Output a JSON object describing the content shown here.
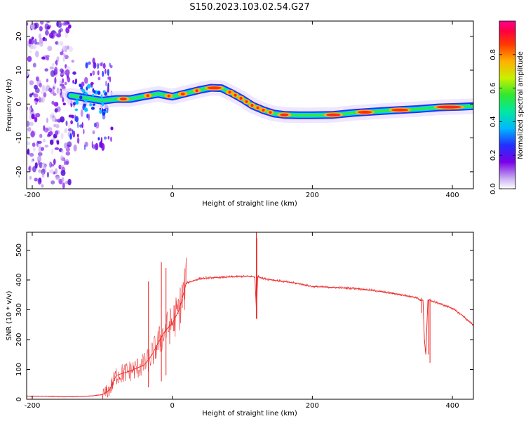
{
  "title": "S150.2023.103.02.54.G27",
  "chart_data": [
    {
      "type": "heatmap",
      "name": "spectrogram",
      "xlabel": "Height of straight line (km)",
      "ylabel": "Frequency (Hz)",
      "xlim": [
        -208,
        430
      ],
      "ylim": [
        -25,
        24.5
      ],
      "xticks": [
        "-200",
        "0",
        "200",
        "400"
      ],
      "xtick_values": [
        -200,
        0,
        200,
        400
      ],
      "yticks": [
        "-20",
        "-10",
        "0",
        "10",
        "20"
      ],
      "ytick_values": [
        -20,
        -10,
        0,
        10,
        20
      ],
      "noise_region_km": [
        -208,
        -145
      ],
      "ridge": {
        "x": [
          -145,
          -130,
          -115,
          -100,
          -80,
          -60,
          -40,
          -20,
          0,
          20,
          40,
          55,
          70,
          85,
          100,
          115,
          130,
          145,
          160,
          180,
          200,
          230,
          260,
          290,
          320,
          350,
          380,
          410,
          430
        ],
        "y": [
          2.5,
          2,
          1.5,
          1,
          1.5,
          1.5,
          2.3,
          3,
          2.2,
          3.2,
          4.2,
          4.8,
          4.7,
          3.2,
          1.5,
          -0.5,
          -1.8,
          -2.8,
          -3.2,
          -3.3,
          -3.3,
          -3.2,
          -2.6,
          -2.2,
          -1.8,
          -1.5,
          -1,
          -0.8,
          -0.6
        ]
      },
      "colorbar": {
        "label": "Normalized spectral amplitude",
        "ticks": [
          "0.0",
          "0.2",
          "0.4",
          "0.6",
          "0.8"
        ],
        "tick_values": [
          0,
          0.2,
          0.4,
          0.6,
          0.8
        ],
        "range": [
          0,
          1
        ]
      }
    },
    {
      "type": "line",
      "name": "snr",
      "xlabel": "Height of straight line (km)",
      "ylabel": "SNR (10 * v/v)",
      "xlim": [
        -208,
        430
      ],
      "ylim": [
        0,
        560
      ],
      "xticks": [
        "-200",
        "0",
        "200",
        "400"
      ],
      "xtick_values": [
        -200,
        0,
        200,
        400
      ],
      "yticks": [
        "0",
        "100",
        "200",
        "300",
        "400",
        "500"
      ],
      "ytick_values": [
        0,
        100,
        200,
        300,
        400,
        500
      ],
      "color": "#ee2222",
      "series": [
        {
          "name": "SNR",
          "x": [
            -208,
            -180,
            -150,
            -120,
            -100,
            -90,
            -80,
            -60,
            -40,
            -30,
            -20,
            -10,
            0,
            10,
            20,
            40,
            60,
            80,
            100,
            110,
            118,
            120,
            122,
            130,
            150,
            180,
            200,
            230,
            260,
            290,
            320,
            340,
            350,
            355,
            358,
            360,
            362,
            365,
            368,
            370,
            372,
            380,
            400,
            415,
            425,
            430
          ],
          "y": [
            10,
            10,
            8,
            10,
            15,
            30,
            80,
            95,
            115,
            145,
            190,
            230,
            255,
            300,
            390,
            405,
            408,
            410,
            412,
            412,
            410,
            300,
            412,
            405,
            398,
            388,
            378,
            375,
            372,
            364,
            353,
            345,
            340,
            330,
            333,
            200,
            150,
            333,
            333,
            330,
            328,
            322,
            305,
            280,
            258,
            248
          ]
        }
      ],
      "spikes": [
        {
          "x": 120,
          "from": 270,
          "to": 560
        },
        {
          "x": 120.6,
          "from": 270,
          "to": 540
        },
        {
          "x": 368,
          "from": 122,
          "to": 333
        },
        {
          "x": 366,
          "from": 150,
          "to": 333
        },
        {
          "x": 356,
          "from": 290,
          "to": 340
        },
        {
          "x": -15.6,
          "from": 60,
          "to": 460
        },
        {
          "x": -9,
          "from": 80,
          "to": 440
        },
        {
          "x": -34,
          "from": 40,
          "to": 395
        }
      ]
    }
  ]
}
